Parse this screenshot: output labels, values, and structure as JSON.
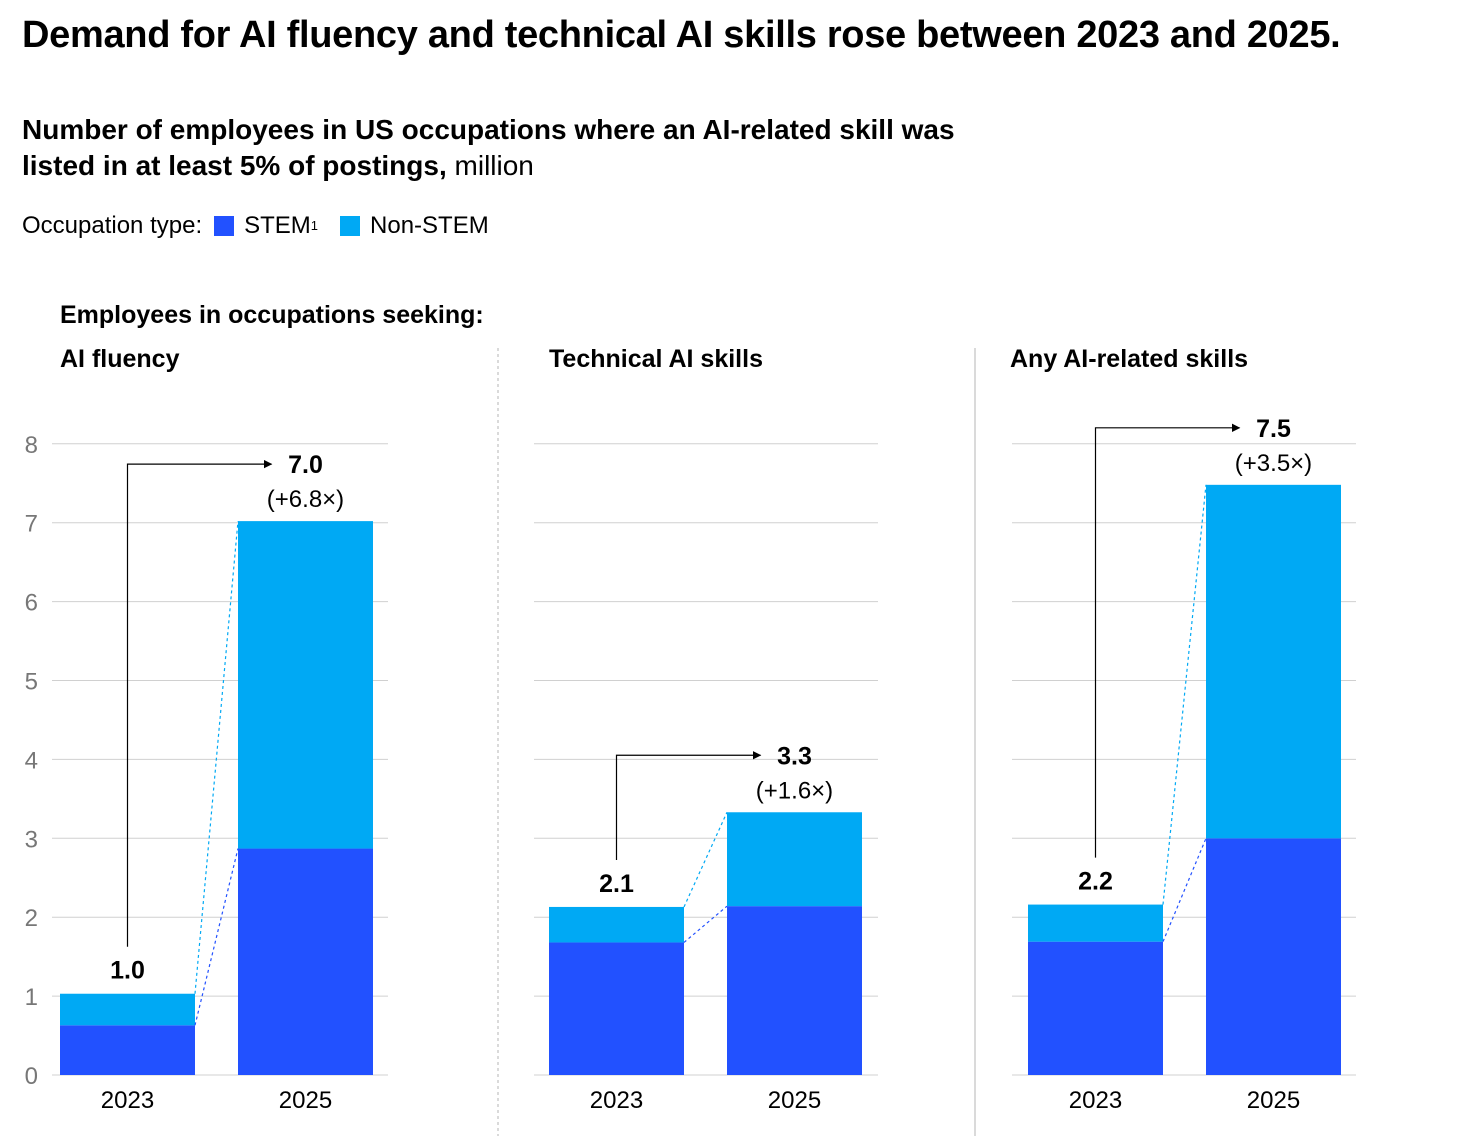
{
  "title": "Demand for AI fluency and technical AI skills rose between 2023 and 2025.",
  "subtitle_bold": "Number of employees in US occupations where an AI-related skill was listed in at least 5% of postings,",
  "subtitle_unit": "million",
  "legend": {
    "label": "Occupation type:",
    "items": [
      {
        "name": "STEM",
        "sup": "1",
        "color": "#2251ff"
      },
      {
        "name": "Non-STEM",
        "sup": "",
        "color": "#00a9f4"
      }
    ]
  },
  "section_header": "Employees in occupations seeking:",
  "colors": {
    "stem": "#2251ff",
    "nonstem": "#00a9f4",
    "grid": "#d0d0d0",
    "axis_text": "#777777"
  },
  "chart_data": {
    "type": "bar",
    "stacked": true,
    "ylim": [
      0,
      8
    ],
    "yticks": [
      0,
      1,
      2,
      3,
      4,
      5,
      6,
      7,
      8
    ],
    "categories": [
      "2023",
      "2025"
    ],
    "panels": [
      {
        "title": "AI fluency",
        "series": [
          {
            "name": "STEM",
            "values": [
              0.63,
              2.87
            ]
          },
          {
            "name": "Non-STEM",
            "values": [
              0.4,
              4.15
            ]
          }
        ],
        "totals": [
          "1.0",
          "7.0"
        ],
        "change": "(+6.8×)"
      },
      {
        "title": "Technical AI skills",
        "series": [
          {
            "name": "STEM",
            "values": [
              1.68,
              2.14
            ]
          },
          {
            "name": "Non-STEM",
            "values": [
              0.45,
              1.19
            ]
          }
        ],
        "totals": [
          "2.1",
          "3.3"
        ],
        "change": "(+1.6×)"
      },
      {
        "title": "Any AI-related skills",
        "series": [
          {
            "name": "STEM",
            "values": [
              1.69,
              3.0
            ]
          },
          {
            "name": "Non-STEM",
            "values": [
              0.47,
              4.48
            ]
          }
        ],
        "totals": [
          "2.2",
          "7.5"
        ],
        "change": "(+3.5×)"
      }
    ]
  }
}
